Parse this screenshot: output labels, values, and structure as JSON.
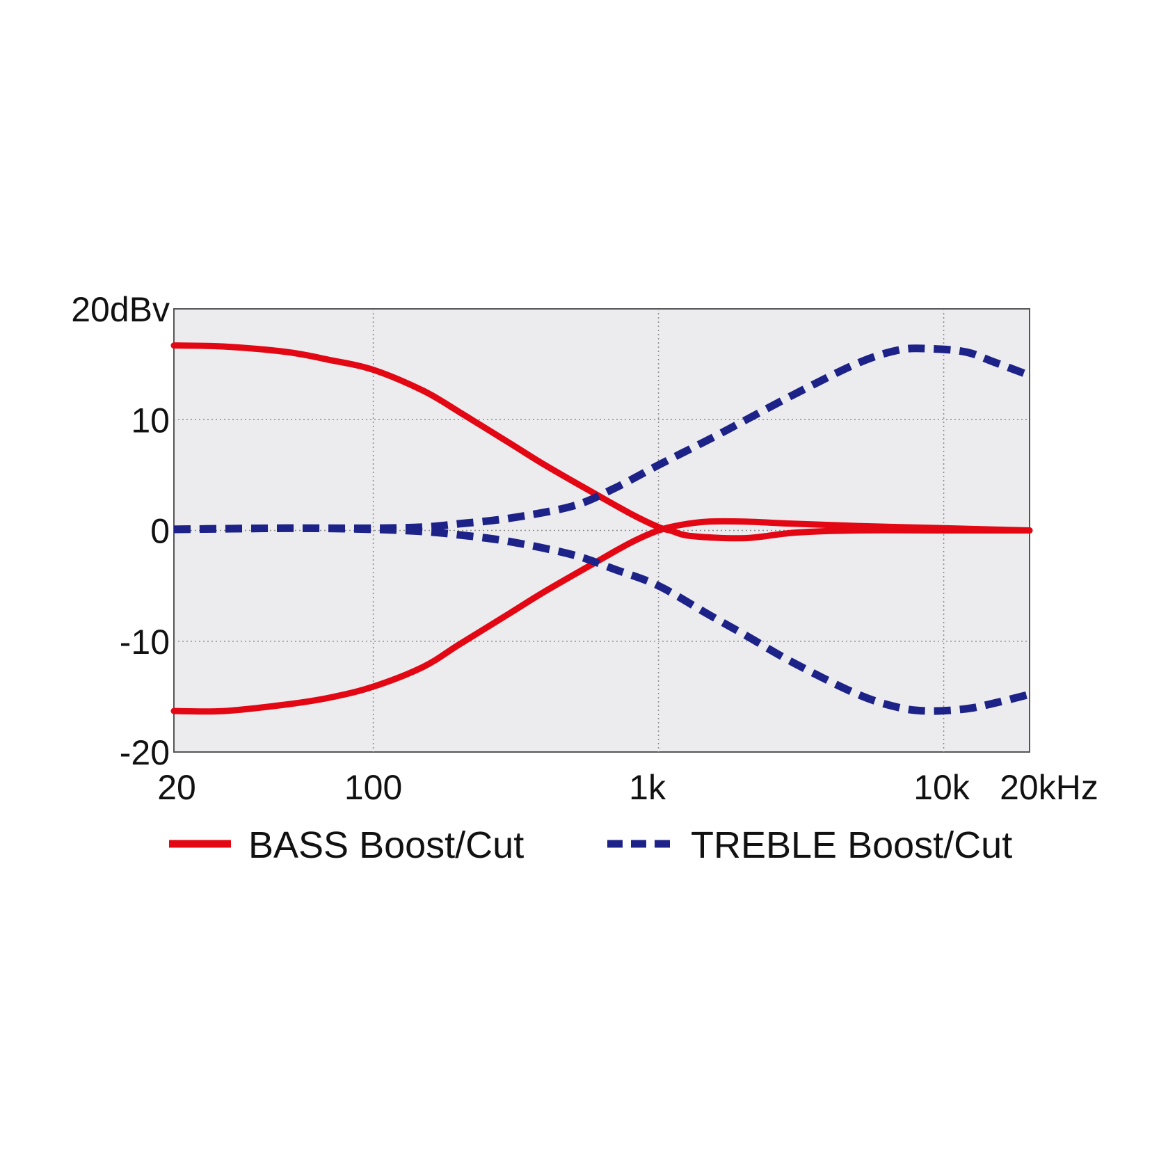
{
  "chart_data": {
    "type": "line",
    "x_scale": "log",
    "xlim": [
      20,
      20000
    ],
    "ylim": [
      -20,
      20
    ],
    "grid": true,
    "legend_position": "bottom",
    "x_ticks": [
      {
        "value": 20,
        "label": "20"
      },
      {
        "value": 100,
        "label": "100"
      },
      {
        "value": 1000,
        "label": "1k"
      },
      {
        "value": 10000,
        "label": "10k"
      },
      {
        "value": 20000,
        "label": "20kHz"
      }
    ],
    "y_ticks": [
      {
        "value": 20,
        "label": "20dBv"
      },
      {
        "value": 10,
        "label": "10"
      },
      {
        "value": 0,
        "label": "0"
      },
      {
        "value": -10,
        "label": "-10"
      },
      {
        "value": -20,
        "label": "-20"
      }
    ],
    "series": [
      {
        "name": "BASS Boost/Cut",
        "color": "#e30613",
        "dash": "solid",
        "curves": [
          [
            [
              20,
              16.7
            ],
            [
              30,
              16.6
            ],
            [
              50,
              16.1
            ],
            [
              70,
              15.4
            ],
            [
              100,
              14.5
            ],
            [
              150,
              12.6
            ],
            [
              200,
              10.7
            ],
            [
              300,
              7.9
            ],
            [
              400,
              5.9
            ],
            [
              600,
              3.3
            ],
            [
              800,
              1.5
            ],
            [
              1000,
              0.3
            ],
            [
              1100,
              0.0
            ],
            [
              1300,
              -0.5
            ],
            [
              2000,
              -0.7
            ],
            [
              3000,
              -0.2
            ],
            [
              5000,
              0.0
            ],
            [
              10000,
              0.0
            ],
            [
              20000,
              0.0
            ]
          ],
          [
            [
              20,
              -16.3
            ],
            [
              30,
              -16.3
            ],
            [
              50,
              -15.7
            ],
            [
              70,
              -15.1
            ],
            [
              100,
              -14.1
            ],
            [
              150,
              -12.3
            ],
            [
              200,
              -10.3
            ],
            [
              300,
              -7.5
            ],
            [
              400,
              -5.5
            ],
            [
              600,
              -2.9
            ],
            [
              800,
              -1.1
            ],
            [
              1000,
              0.0
            ],
            [
              1200,
              0.5
            ],
            [
              1500,
              0.8
            ],
            [
              2000,
              0.8
            ],
            [
              3000,
              0.6
            ],
            [
              5000,
              0.4
            ],
            [
              10000,
              0.2
            ],
            [
              20000,
              0.0
            ]
          ]
        ]
      },
      {
        "name": "TREBLE Boost/Cut",
        "color": "#1d2288",
        "dash": "dashed",
        "curves": [
          [
            [
              20,
              0.1
            ],
            [
              50,
              0.2
            ],
            [
              100,
              0.2
            ],
            [
              150,
              0.3
            ],
            [
              200,
              0.6
            ],
            [
              300,
              1.1
            ],
            [
              500,
              2.2
            ],
            [
              700,
              3.8
            ],
            [
              1000,
              5.9
            ],
            [
              1500,
              8.2
            ],
            [
              2000,
              9.9
            ],
            [
              3000,
              12.3
            ],
            [
              5000,
              15.1
            ],
            [
              7000,
              16.3
            ],
            [
              9000,
              16.4
            ],
            [
              12000,
              16.1
            ],
            [
              15000,
              15.2
            ],
            [
              20000,
              14.0
            ]
          ],
          [
            [
              20,
              0.1
            ],
            [
              50,
              0.2
            ],
            [
              100,
              0.1
            ],
            [
              150,
              -0.1
            ],
            [
              200,
              -0.4
            ],
            [
              300,
              -1.0
            ],
            [
              500,
              -2.2
            ],
            [
              700,
              -3.5
            ],
            [
              1000,
              -5.0
            ],
            [
              1500,
              -7.6
            ],
            [
              2000,
              -9.4
            ],
            [
              3000,
              -12.0
            ],
            [
              5000,
              -14.8
            ],
            [
              7000,
              -16.0
            ],
            [
              9000,
              -16.3
            ],
            [
              12000,
              -16.1
            ],
            [
              15000,
              -15.6
            ],
            [
              20000,
              -14.8
            ]
          ]
        ]
      }
    ]
  }
}
